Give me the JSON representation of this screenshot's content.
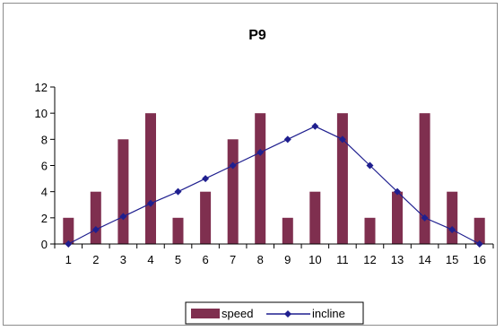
{
  "chart_data": {
    "type": "bar",
    "title": "P9",
    "xlabel": "",
    "ylabel": "",
    "categories": [
      "1",
      "2",
      "3",
      "4",
      "5",
      "6",
      "7",
      "8",
      "9",
      "10",
      "11",
      "12",
      "13",
      "14",
      "15",
      "16"
    ],
    "ylim": [
      0,
      12
    ],
    "yticks": [
      0,
      2,
      4,
      6,
      8,
      10,
      12
    ],
    "grid": false,
    "legend_position": "bottom",
    "series": [
      {
        "name": "speed",
        "type": "bar",
        "color": "#7f2f4f",
        "values": [
          2,
          4,
          8,
          10,
          2,
          4,
          8,
          10,
          2,
          4,
          10,
          2,
          4,
          10,
          4,
          2
        ]
      },
      {
        "name": "incline",
        "type": "line",
        "color": "#1f1f8f",
        "marker": "diamond",
        "values": [
          0,
          1.1,
          2.1,
          3.1,
          4,
          5,
          6,
          7,
          8,
          9,
          8,
          6,
          4,
          2,
          1.1,
          0
        ]
      }
    ]
  }
}
